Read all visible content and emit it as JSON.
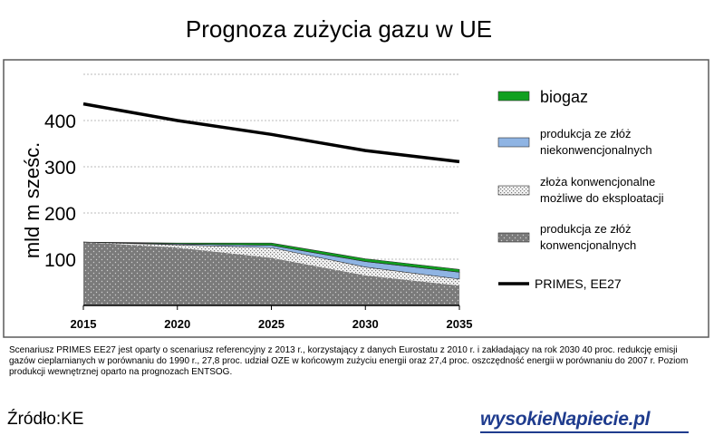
{
  "chart_data": {
    "type": "area",
    "title": "Prognoza zużycia gazu w UE",
    "ylabel": "mld m sześc.",
    "xlabel": "",
    "x": [
      2015,
      2020,
      2025,
      2030,
      2035
    ],
    "ylim": [
      0,
      500
    ],
    "xlim": [
      2015,
      2035
    ],
    "y_ticks": [
      100,
      200,
      300,
      400
    ],
    "x_ticks": [
      2015,
      2020,
      2025,
      2030,
      2035
    ],
    "grid": "horizontal dotted",
    "legend_position": "right",
    "stacked_series": [
      {
        "name": "produkcja ze złóż konwencjonalnych",
        "color": "#808080",
        "pattern": "dots-dark",
        "values": [
          137,
          125,
          103,
          65,
          43
        ]
      },
      {
        "name": "złoża konwencjonalne możliwe do eksploatacji",
        "color": "#d9d9d9",
        "pattern": "dots-light",
        "values": [
          0,
          6,
          22,
          18,
          14
        ]
      },
      {
        "name": "produkcja ze złóż niekonwencjonalnych",
        "color": "#8fb4e3",
        "pattern": "solid",
        "values": [
          0,
          2,
          5,
          12,
          15
        ]
      },
      {
        "name": "biogaz",
        "color": "#10a020",
        "pattern": "solid",
        "values": [
          0,
          2,
          5,
          6,
          6
        ]
      }
    ],
    "line_series": [
      {
        "name": "PRIMES, EE27",
        "color": "#000000",
        "values": [
          436,
          400,
          370,
          335,
          311
        ]
      }
    ]
  },
  "footnote": "Scenariusz PRIMES EE27 jest oparty o scenariusz referencyjny z 2013 r., korzystający z danych Eurostatu z 2010 r. i zakładający na rok 2030 40 proc. redukcję emisji gazów cieplarnianych w porównaniu do 1990 r., 27,8 proc. udział OZE w końcowym zużyciu energii oraz 27,4 proc. oszczędność energii w porównaniu do 2007 r. Poziom produkcji wewnętrznej oparto na prognozach ENTSOG.",
  "source": "Źródło:KE",
  "brand": "wysokieNapiecie.pl"
}
